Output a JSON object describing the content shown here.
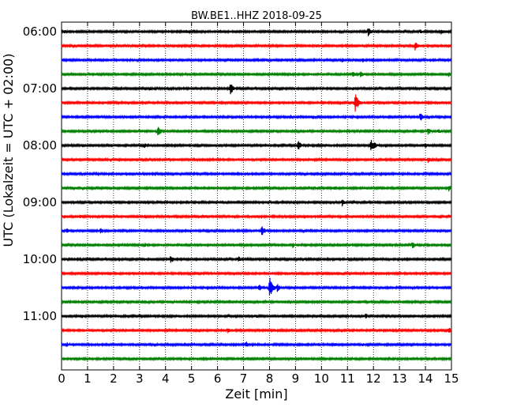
{
  "chart_data": {
    "type": "line",
    "title": "BW.BE1..HHZ 2018-09-25",
    "xlabel": "Zeit  [min]",
    "ylabel": "UTC (Lokalzeit = UTC + 02:00)",
    "xlim": [
      0,
      15
    ],
    "x_ticks": [
      "0",
      "1",
      "2",
      "3",
      "4",
      "5",
      "6",
      "7",
      "8",
      "9",
      "10",
      "11",
      "12",
      "13",
      "14",
      "15"
    ],
    "y_ticks": [
      "06:00",
      "07:00",
      "08:00",
      "09:00",
      "10:00",
      "11:00"
    ],
    "grid": "vertical dotted",
    "colors": [
      "#000000",
      "#ff0000",
      "#0000ff",
      "#008000"
    ],
    "traces": [
      {
        "start": "06:00",
        "color": "#000000",
        "events": [
          [
            0.1,
            0.35
          ],
          [
            4.8,
            0.3
          ],
          [
            11.8,
            0.7
          ],
          [
            13.8,
            0.4
          ],
          [
            14.6,
            0.45
          ]
        ]
      },
      {
        "start": "06:15",
        "color": "#ff0000",
        "events": [
          [
            9.8,
            0.3
          ],
          [
            13.6,
            0.75
          ]
        ]
      },
      {
        "start": "06:30",
        "color": "#0000ff",
        "events": [
          [
            3.8,
            0.2
          ],
          [
            6.4,
            0.3
          ],
          [
            10.8,
            0.35
          ],
          [
            11.6,
            0.35
          ],
          [
            12.0,
            0.3
          ]
        ]
      },
      {
        "start": "06:45",
        "color": "#008000",
        "events": [
          [
            8.8,
            0.25
          ],
          [
            11.2,
            0.55
          ],
          [
            11.5,
            0.6
          ],
          [
            14.9,
            0.45
          ]
        ]
      },
      {
        "start": "07:00",
        "color": "#000000",
        "events": [
          [
            1.0,
            0.3
          ],
          [
            3.4,
            0.3
          ],
          [
            6.5,
            0.85
          ],
          [
            11.2,
            0.3
          ]
        ]
      },
      {
        "start": "07:15",
        "color": "#ff0000",
        "events": [
          [
            2.2,
            0.3
          ],
          [
            11.3,
            1.4
          ],
          [
            11.4,
            0.6
          ]
        ]
      },
      {
        "start": "07:30",
        "color": "#0000ff",
        "events": [
          [
            8.8,
            0.35
          ],
          [
            9.7,
            0.3
          ],
          [
            13.8,
            0.7
          ]
        ]
      },
      {
        "start": "07:45",
        "color": "#008000",
        "events": [
          [
            3.7,
            0.8
          ],
          [
            14.1,
            0.6
          ],
          [
            14.5,
            0.4
          ]
        ]
      },
      {
        "start": "08:00",
        "color": "#000000",
        "events": [
          [
            3.2,
            0.35
          ],
          [
            9.1,
            0.8
          ],
          [
            11.9,
            1.0
          ],
          [
            12.0,
            0.7
          ],
          [
            14.0,
            0.4
          ]
        ]
      },
      {
        "start": "08:15",
        "color": "#ff0000",
        "events": [
          [
            1.9,
            0.3
          ],
          [
            4.1,
            0.25
          ],
          [
            14.1,
            0.45
          ],
          [
            14.5,
            0.3
          ]
        ]
      },
      {
        "start": "08:30",
        "color": "#0000ff",
        "events": [
          [
            6.7,
            0.25
          ],
          [
            12.3,
            0.35
          ]
        ]
      },
      {
        "start": "08:45",
        "color": "#008000",
        "events": [
          [
            1.3,
            0.25
          ],
          [
            7.8,
            0.3
          ],
          [
            9.7,
            0.3
          ],
          [
            10.5,
            0.3
          ],
          [
            14.9,
            0.5
          ]
        ]
      },
      {
        "start": "09:00",
        "color": "#000000",
        "events": [
          [
            6.3,
            0.25
          ],
          [
            10.8,
            0.55
          ]
        ]
      },
      {
        "start": "09:15",
        "color": "#ff0000",
        "events": [
          [
            0.7,
            0.35
          ],
          [
            3.2,
            0.35
          ],
          [
            5.5,
            0.3
          ],
          [
            14.9,
            0.3
          ]
        ]
      },
      {
        "start": "09:30",
        "color": "#0000ff",
        "events": [
          [
            0.2,
            0.4
          ],
          [
            1.5,
            0.5
          ],
          [
            7.7,
            0.85
          ],
          [
            14.4,
            0.3
          ]
        ]
      },
      {
        "start": "09:45",
        "color": "#008000",
        "events": [
          [
            3.2,
            0.35
          ],
          [
            8.9,
            0.4
          ],
          [
            13.5,
            0.6
          ]
        ]
      },
      {
        "start": "10:00",
        "color": "#000000",
        "events": [
          [
            4.2,
            0.65
          ],
          [
            6.8,
            0.5
          ],
          [
            9.3,
            0.3
          ]
        ]
      },
      {
        "start": "10:15",
        "color": "#ff0000",
        "events": [
          [
            10.8,
            0.2
          ]
        ]
      },
      {
        "start": "10:30",
        "color": "#0000ff",
        "events": [
          [
            7.6,
            0.5
          ],
          [
            8.0,
            1.7
          ],
          [
            8.3,
            0.6
          ]
        ]
      },
      {
        "start": "10:45",
        "color": "#008000",
        "events": [
          [
            3.3,
            0.2
          ],
          [
            8.8,
            0.25
          ]
        ]
      },
      {
        "start": "11:00",
        "color": "#000000",
        "events": [
          [
            0.8,
            0.3
          ],
          [
            2.3,
            0.3
          ],
          [
            7.5,
            0.3
          ],
          [
            11.7,
            0.45
          ]
        ]
      },
      {
        "start": "11:15",
        "color": "#ff0000",
        "events": [
          [
            6.4,
            0.4
          ],
          [
            14.9,
            0.45
          ]
        ]
      },
      {
        "start": "11:30",
        "color": "#0000ff",
        "events": [
          [
            0.2,
            0.4
          ],
          [
            7.1,
            0.5
          ],
          [
            10.5,
            0.3
          ],
          [
            11.6,
            0.3
          ]
        ]
      },
      {
        "start": "11:45",
        "color": "#008000",
        "events": [
          [
            1.0,
            0.3
          ],
          [
            2.0,
            0.3
          ]
        ]
      }
    ]
  }
}
